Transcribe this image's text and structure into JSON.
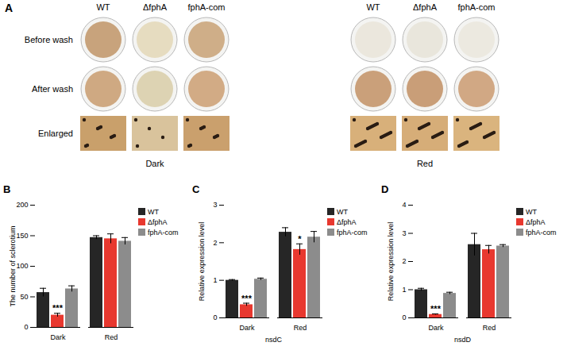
{
  "chart_data": [
    {
      "type": "image_grid",
      "panel_label": "A",
      "row_labels": [
        "Before wash",
        "After wash",
        "Enlarged"
      ],
      "groups": [
        {
          "name": "Dark",
          "columns": [
            "WT",
            "ΔfphA",
            "fphA-com"
          ]
        },
        {
          "name": "Red",
          "columns": [
            "WT",
            "ΔfphA",
            "fphA-com"
          ]
        }
      ]
    },
    {
      "type": "bar",
      "panel_label": "B",
      "categories": [
        "Dark",
        "Red"
      ],
      "y_label": "The number of sclerotium",
      "ylim": [
        0,
        200
      ],
      "yticks": [
        0,
        50,
        100,
        150,
        200
      ],
      "legend": "right",
      "series": [
        {
          "name": "WT",
          "color": "#262626",
          "values": [
            57,
            147
          ],
          "errors": [
            7,
            3
          ]
        },
        {
          "name": "ΔfphA",
          "color": "#e8382f",
          "values": [
            20,
            145
          ],
          "errors": [
            3,
            8
          ]
        },
        {
          "name": "fphA-com",
          "color": "#8c8c8c",
          "values": [
            63,
            141
          ],
          "errors": [
            5,
            6
          ]
        }
      ],
      "annotations": [
        {
          "category": "Dark",
          "series": "ΔfphA",
          "text": "***"
        }
      ]
    },
    {
      "type": "bar",
      "panel_label": "C",
      "categories": [
        "Dark",
        "Red"
      ],
      "x_label": "nsdC",
      "y_label": "Relative expression level",
      "ylim": [
        0,
        3
      ],
      "yticks": [
        0,
        1,
        2,
        3
      ],
      "legend": "right",
      "series": [
        {
          "name": "WT",
          "color": "#262626",
          "values": [
            1.0,
            2.28
          ],
          "errors": [
            0.02,
            0.12
          ]
        },
        {
          "name": "ΔfphA",
          "color": "#e8382f",
          "values": [
            0.35,
            1.82
          ],
          "errors": [
            0.04,
            0.15
          ]
        },
        {
          "name": "fphA-com",
          "color": "#8c8c8c",
          "values": [
            1.03,
            2.15
          ],
          "errors": [
            0.03,
            0.15
          ]
        }
      ],
      "annotations": [
        {
          "category": "Dark",
          "series": "ΔfphA",
          "text": "***"
        },
        {
          "category": "Red",
          "series": "ΔfphA",
          "text": "*"
        }
      ]
    },
    {
      "type": "bar",
      "panel_label": "D",
      "categories": [
        "Dark",
        "Red"
      ],
      "x_label": "nsdD",
      "y_label": "Relative expression level",
      "ylim": [
        0,
        4
      ],
      "yticks": [
        0,
        1,
        2,
        3,
        4
      ],
      "legend": "right",
      "series": [
        {
          "name": "WT",
          "color": "#262626",
          "values": [
            1.0,
            2.6
          ],
          "errors": [
            0.05,
            0.4
          ]
        },
        {
          "name": "ΔfphA",
          "color": "#e8382f",
          "values": [
            0.12,
            2.42
          ],
          "errors": [
            0.02,
            0.15
          ]
        },
        {
          "name": "fphA-com",
          "color": "#8c8c8c",
          "values": [
            0.87,
            2.55
          ],
          "errors": [
            0.04,
            0.05
          ]
        }
      ],
      "annotations": [
        {
          "category": "Dark",
          "series": "ΔfphA",
          "text": "***"
        }
      ]
    }
  ]
}
